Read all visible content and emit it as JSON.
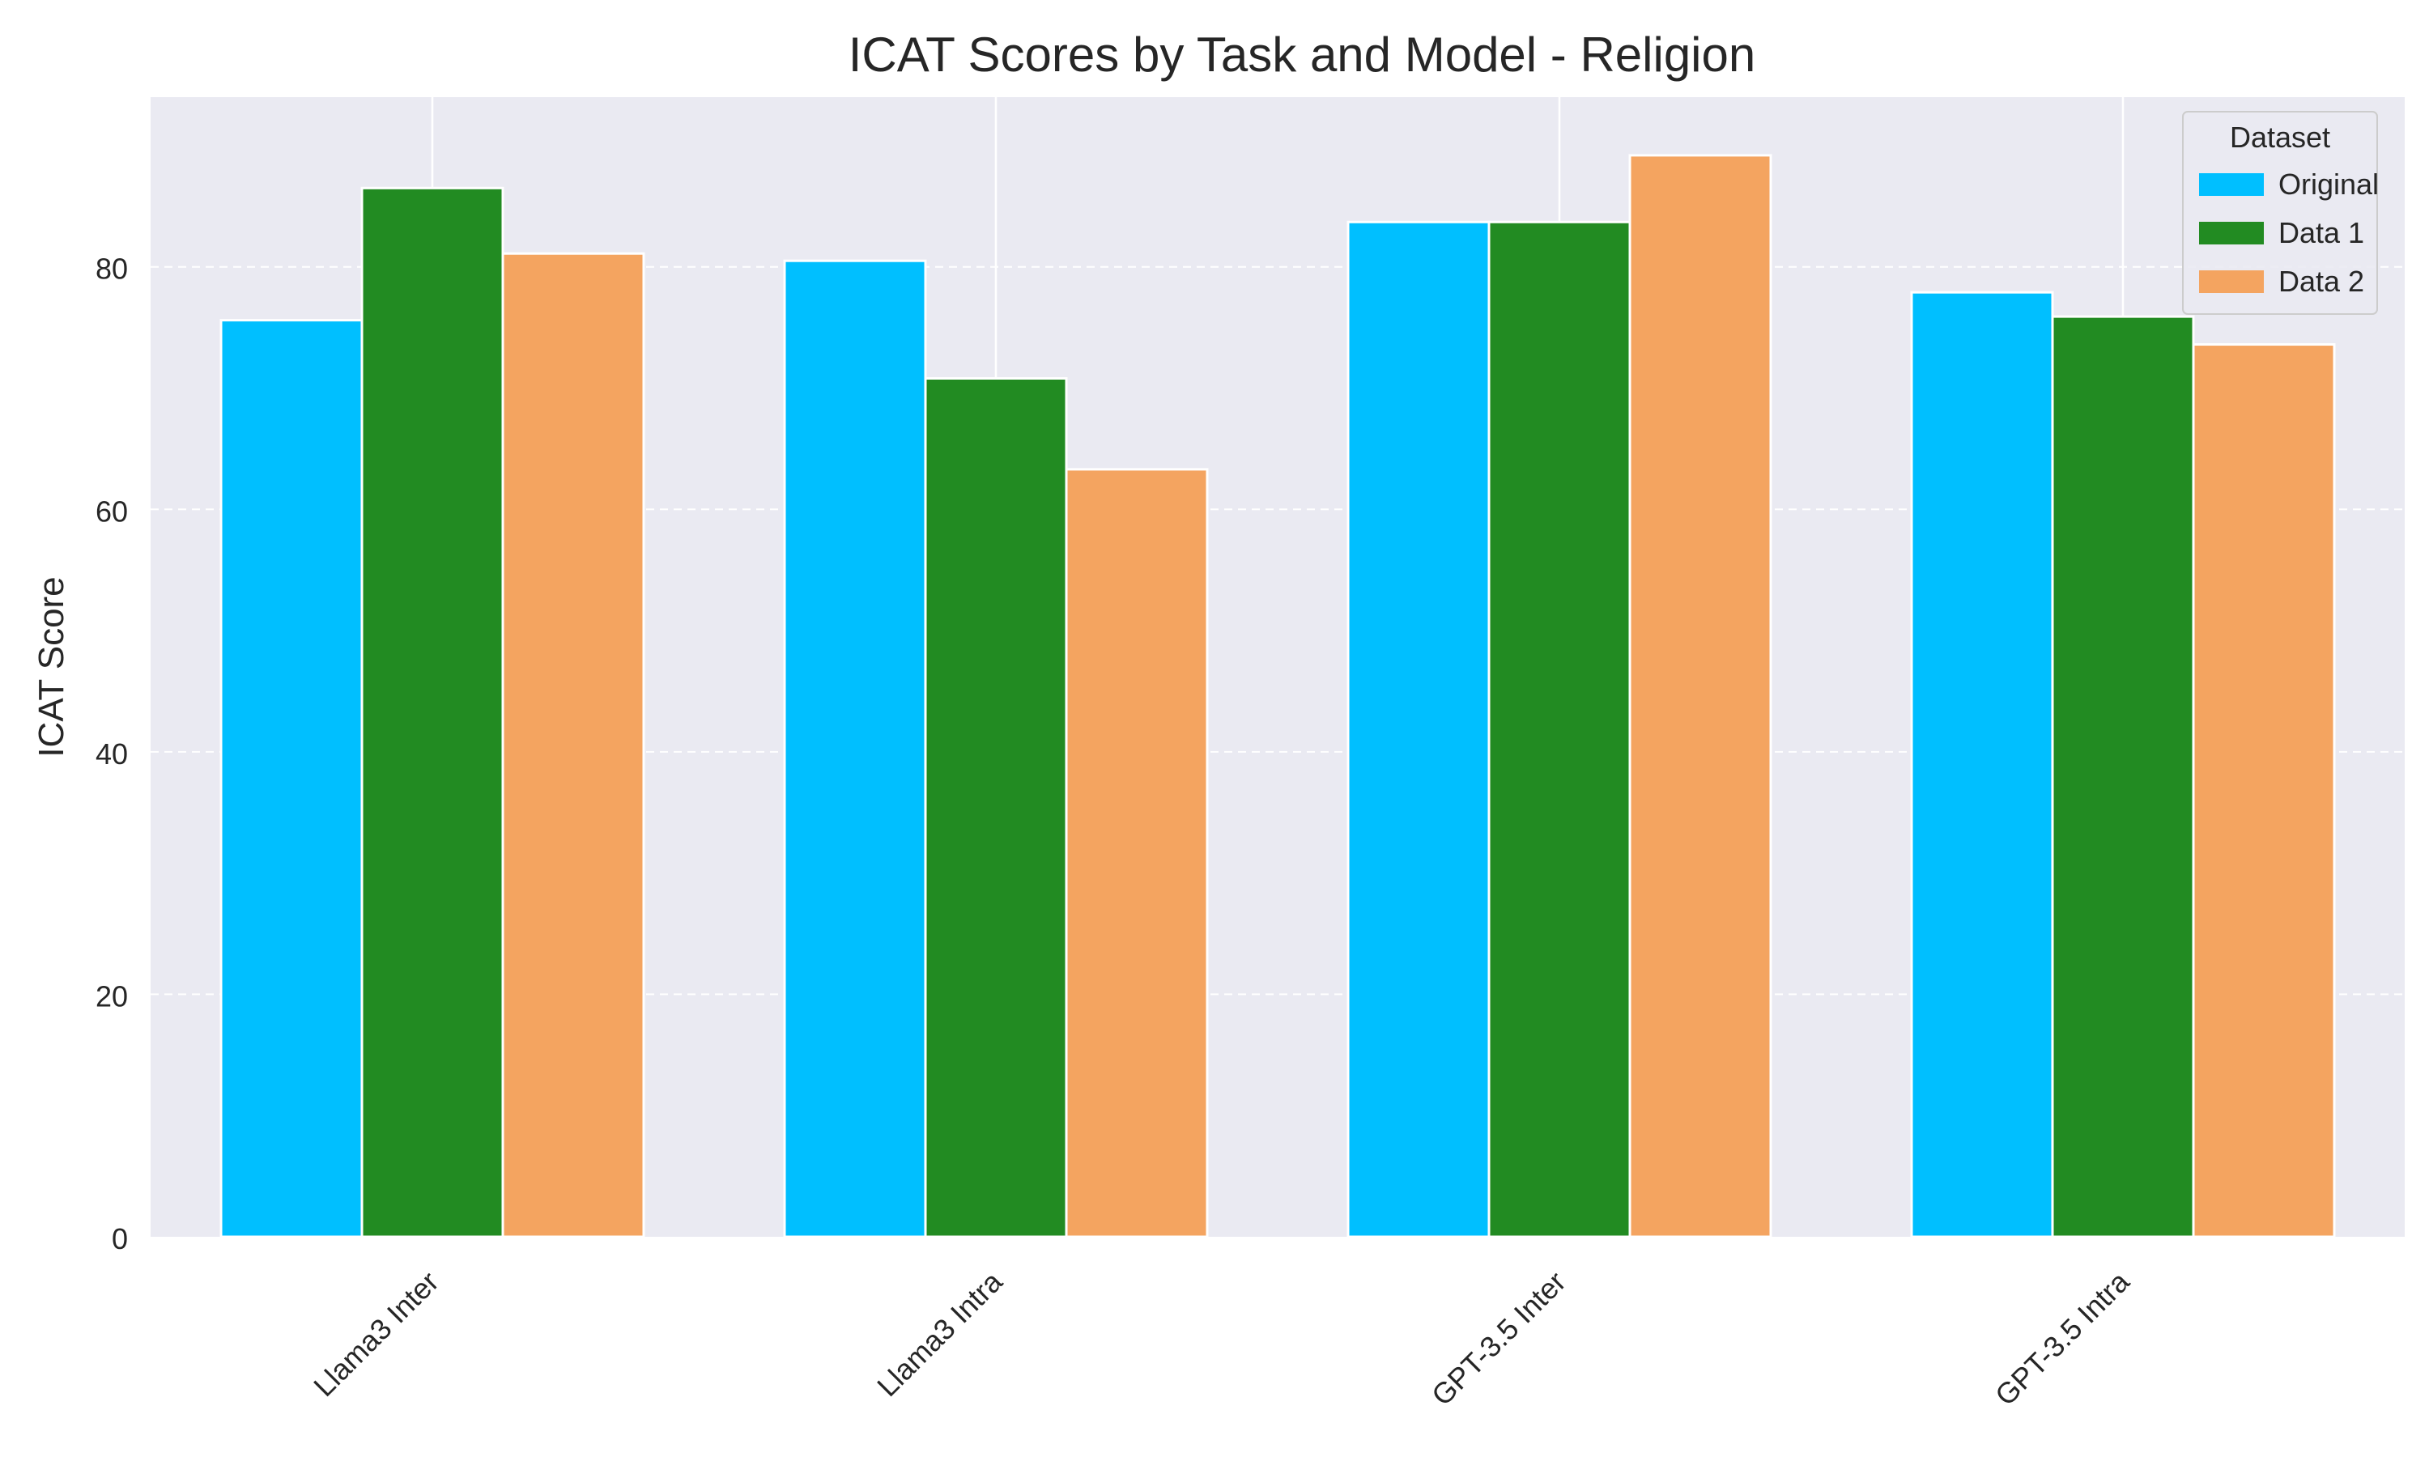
{
  "chart_data": {
    "type": "bar",
    "title": "ICAT Scores by Task and Model - Religion",
    "xlabel": "",
    "ylabel": "ICAT Score",
    "categories": [
      "Llama3 Inter",
      "Llama3 Intra",
      "GPT-3.5 Inter",
      "GPT-3.5 Intra"
    ],
    "series": [
      {
        "name": "Original",
        "color": "#00BFFF",
        "values": [
          75.6,
          80.5,
          83.7,
          77.9
        ]
      },
      {
        "name": "Data 1",
        "color": "#228B22",
        "values": [
          86.5,
          70.8,
          83.7,
          75.9
        ]
      },
      {
        "name": "Data 2",
        "color": "#F4A460",
        "values": [
          81.1,
          63.3,
          89.2,
          73.6
        ]
      }
    ],
    "ylim": [
      0,
      94
    ],
    "yticks": [
      0,
      20,
      40,
      60,
      80
    ],
    "grid": true,
    "legend": {
      "title": "Dataset",
      "placement": "top-right"
    },
    "background_color": "#EAEAF2"
  }
}
